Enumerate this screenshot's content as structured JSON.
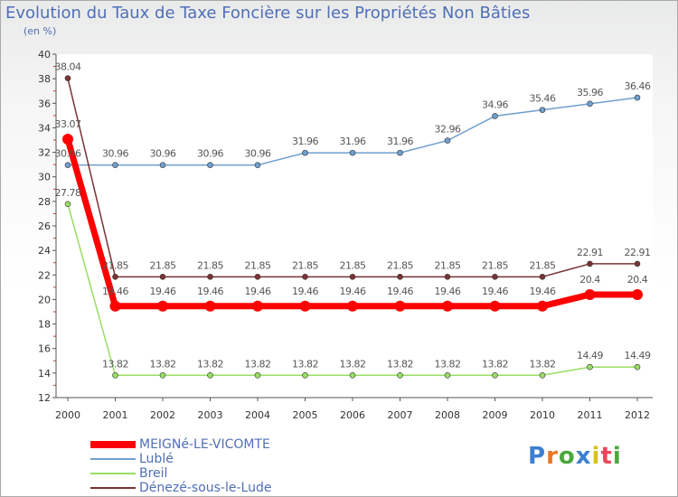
{
  "header": {
    "title": "Evolution du Taux de Taxe Foncière sur les Propriétés Non Bâties",
    "subtitle": "(en %)"
  },
  "chart_data": {
    "type": "line",
    "title": "Evolution du Taux de Taxe Foncière sur les Propriétés Non Bâties",
    "ylabel": "(en %)",
    "xlabel": "",
    "x": [
      "2000",
      "2001",
      "2002",
      "2003",
      "2004",
      "2005",
      "2006",
      "2007",
      "2008",
      "2009",
      "2010",
      "2011",
      "2012"
    ],
    "ylim": [
      12,
      40
    ],
    "yticks": [
      12,
      14,
      16,
      18,
      20,
      22,
      24,
      26,
      28,
      30,
      32,
      34,
      36,
      38,
      40
    ],
    "grid": false,
    "legend_position": "bottom-left",
    "series": [
      {
        "name": "MEIGNé-LE-VICOMTE",
        "color": "#ff0000",
        "values": [
          33.07,
          19.46,
          19.46,
          19.46,
          19.46,
          19.46,
          19.46,
          19.46,
          19.46,
          19.46,
          19.46,
          20.4,
          20.4
        ],
        "labels": [
          "33.07",
          "19.46",
          "19.46",
          "19.46",
          "19.46",
          "19.46",
          "19.46",
          "19.46",
          "19.46",
          "19.46",
          "19.46",
          "20.4",
          "20.4"
        ]
      },
      {
        "name": "Lublé",
        "color": "#6f9fcf",
        "values": [
          30.96,
          30.96,
          30.96,
          30.96,
          30.96,
          31.96,
          31.96,
          31.96,
          32.96,
          34.96,
          35.46,
          35.96,
          36.46
        ],
        "labels": [
          "30.96",
          "30.96",
          "30.96",
          "30.96",
          "30.96",
          "31.96",
          "31.96",
          "31.96",
          "32.96",
          "34.96",
          "35.46",
          "35.96",
          "36.46"
        ]
      },
      {
        "name": "Breil",
        "color": "#99dd66",
        "values": [
          27.78,
          13.82,
          13.82,
          13.82,
          13.82,
          13.82,
          13.82,
          13.82,
          13.82,
          13.82,
          13.82,
          14.49,
          14.49
        ],
        "labels": [
          "27.78",
          "13.82",
          "13.82",
          "13.82",
          "13.82",
          "13.82",
          "13.82",
          "13.82",
          "13.82",
          "13.82",
          "13.82",
          "14.49",
          "14.49"
        ]
      },
      {
        "name": "Dénezé-sous-le-Lude",
        "color": "#7a3333",
        "values": [
          38.04,
          21.85,
          21.85,
          21.85,
          21.85,
          21.85,
          21.85,
          21.85,
          21.85,
          21.85,
          21.85,
          22.91,
          22.91
        ],
        "labels": [
          "38.04",
          "21.85",
          "21.85",
          "21.85",
          "21.85",
          "21.85",
          "21.85",
          "21.85",
          "21.85",
          "21.85",
          "21.85",
          "22.91",
          "22.91"
        ]
      }
    ]
  },
  "logo": {
    "letters": [
      "P",
      "r",
      "o",
      "x",
      "i",
      "t",
      "i"
    ],
    "colors": [
      "#3d7fd0",
      "#e87722",
      "#49a83c",
      "#3d7fd0",
      "#d9c21a",
      "#e8455a",
      "#49a83c"
    ]
  }
}
